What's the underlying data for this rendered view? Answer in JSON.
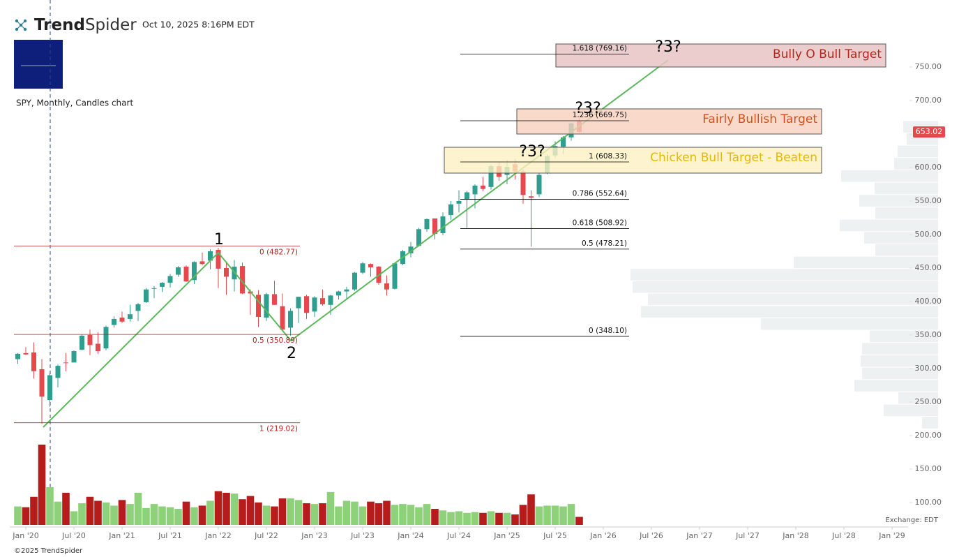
{
  "header": {
    "logo": [
      "Trend",
      "Spider"
    ],
    "timestamp": "Oct 10, 2025 8:16PM EDT",
    "symbol": "SPY, Monthly, Candles chart",
    "exchange": "Exchange: EDT",
    "copyright": "©2025 TrendSpider"
  },
  "chart_data": {
    "type": "candlestick",
    "x": [
      "2019-12",
      "2020-01",
      "2020-02",
      "2020-03",
      "2020-04",
      "2020-05",
      "2020-06",
      "2020-07",
      "2020-08",
      "2020-09",
      "2020-10",
      "2020-11",
      "2020-12",
      "2021-01",
      "2021-02",
      "2021-03",
      "2021-04",
      "2021-05",
      "2021-06",
      "2021-07",
      "2021-08",
      "2021-09",
      "2021-10",
      "2021-11",
      "2021-12",
      "2022-01",
      "2022-02",
      "2022-03",
      "2022-04",
      "2022-05",
      "2022-06",
      "2022-07",
      "2022-08",
      "2022-09",
      "2022-10",
      "2022-11",
      "2022-12",
      "2023-01",
      "2023-02",
      "2023-03",
      "2023-04",
      "2023-05",
      "2023-06",
      "2023-07",
      "2023-08",
      "2023-09",
      "2023-10",
      "2023-11",
      "2023-12",
      "2024-01",
      "2024-02",
      "2024-03",
      "2024-04",
      "2024-05",
      "2024-06",
      "2024-07",
      "2024-08",
      "2024-09",
      "2024-10",
      "2024-11",
      "2024-12",
      "2025-01",
      "2025-02",
      "2025-03",
      "2025-04",
      "2025-05",
      "2025-06",
      "2025-07",
      "2025-08",
      "2025-09",
      "2025-10"
    ],
    "open": [
      314,
      323,
      324,
      299,
      253,
      286,
      309,
      309,
      328,
      350,
      337,
      330,
      365,
      376,
      374,
      386,
      399,
      419,
      422,
      428,
      440,
      452,
      432,
      460,
      461,
      477,
      450,
      433,
      453,
      415,
      410,
      376,
      411,
      393,
      361,
      390,
      408,
      385,
      405,
      395,
      409,
      415,
      418,
      443,
      456,
      452,
      427,
      419,
      456,
      472,
      483,
      508,
      524,
      502,
      529,
      546,
      552,
      560,
      573,
      571,
      602,
      589,
      605,
      594,
      557,
      560,
      592,
      618,
      631,
      645,
      669
    ],
    "high": [
      323,
      332,
      339,
      314,
      294,
      306,
      323,
      327,
      351,
      358,
      354,
      364,
      378,
      385,
      395,
      398,
      420,
      423,
      429,
      441,
      453,
      454,
      460,
      473,
      478,
      480,
      458,
      462,
      458,
      418,
      417,
      413,
      431,
      412,
      390,
      407,
      410,
      408,
      418,
      410,
      416,
      422,
      444,
      459,
      457,
      453,
      439,
      457,
      477,
      489,
      510,
      524,
      524,
      533,
      550,
      566,
      565,
      575,
      586,
      604,
      609,
      611,
      613,
      597,
      566,
      592,
      620,
      639,
      647,
      667,
      674
    ],
    "low": [
      307,
      320,
      285,
      218,
      243,
      272,
      296,
      311,
      327,
      320,
      322,
      327,
      361,
      368,
      370,
      371,
      398,
      405,
      414,
      421,
      437,
      429,
      426,
      454,
      448,
      420,
      410,
      415,
      411,
      380,
      362,
      371,
      395,
      357,
      349,
      368,
      374,
      377,
      394,
      380,
      403,
      403,
      416,
      441,
      437,
      425,
      409,
      418,
      454,
      466,
      482,
      504,
      493,
      499,
      522,
      533,
      510,
      539,
      565,
      567,
      580,
      575,
      582,
      546,
      482,
      556,
      590,
      614,
      620,
      640,
      652
    ],
    "close": [
      322,
      321,
      296,
      258,
      290,
      304,
      308,
      326,
      349,
      335,
      326,
      362,
      374,
      370,
      381,
      396,
      418,
      420,
      428,
      438,
      451,
      430,
      459,
      456,
      475,
      449,
      437,
      452,
      412,
      412,
      377,
      411,
      395,
      358,
      386,
      407,
      383,
      406,
      396,
      409,
      415,
      418,
      443,
      457,
      451,
      428,
      418,
      457,
      475,
      482,
      508,
      523,
      501,
      527,
      545,
      550,
      563,
      573,
      568,
      602,
      586,
      601,
      594,
      559,
      555,
      589,
      617,
      632,
      645,
      666,
      653.02
    ],
    "volume": [
      1150,
      1100,
      1750,
      5000,
      2350,
      1450,
      2000,
      850,
      1350,
      1750,
      1500,
      1400,
      1200,
      1550,
      1300,
      2000,
      1050,
      1300,
      1150,
      1100,
      1000,
      1450,
      1100,
      1200,
      1500,
      2100,
      2000,
      1950,
      1600,
      1800,
      1400,
      1200,
      1150,
      1650,
      1650,
      1550,
      1350,
      1300,
      1350,
      2050,
      1150,
      1500,
      1450,
      1150,
      1450,
      1350,
      1500,
      1250,
      1300,
      1250,
      1100,
      1300,
      1000,
      900,
      800,
      850,
      750,
      800,
      750,
      850,
      750,
      750,
      650,
      1250,
      1900,
      1150,
      1200,
      1200,
      1150,
      1300,
      500
    ],
    "up_color": "#2f9e8f",
    "down_color": "#e5484d",
    "volume_up_color": "#8fd17a",
    "volume_down_color": "#b71c1c",
    "xlim": [
      "2019-11",
      "2029-03"
    ],
    "xticks": [
      {
        "value": "2020-01",
        "label": "Jan '20"
      },
      {
        "value": "2020-07",
        "label": "Jul '20"
      },
      {
        "value": "2021-01",
        "label": "Jan '21"
      },
      {
        "value": "2021-07",
        "label": "Jul '21"
      },
      {
        "value": "2022-01",
        "label": "Jan '22"
      },
      {
        "value": "2022-07",
        "label": "Jul '22"
      },
      {
        "value": "2023-01",
        "label": "Jan '23"
      },
      {
        "value": "2023-07",
        "label": "Jul '23"
      },
      {
        "value": "2024-01",
        "label": "Jan '24"
      },
      {
        "value": "2024-07",
        "label": "Jul '24"
      },
      {
        "value": "2025-01",
        "label": "Jan '25"
      },
      {
        "value": "2025-07",
        "label": "Jul '25"
      },
      {
        "value": "2026-01",
        "label": "Jan '26"
      },
      {
        "value": "2026-07",
        "label": "Jul '26"
      },
      {
        "value": "2027-01",
        "label": "Jan '27"
      },
      {
        "value": "2027-07",
        "label": "Jul '27"
      },
      {
        "value": "2028-01",
        "label": "Jan '28"
      },
      {
        "value": "2028-07",
        "label": "Jul '28"
      },
      {
        "value": "2029-01",
        "label": "Jan '29"
      }
    ],
    "ylim": [
      63.5,
      850
    ],
    "yticks": [
      {
        "value": 100,
        "label": "100.00"
      },
      {
        "value": 150,
        "label": "150.00"
      },
      {
        "value": 200,
        "label": "200.00"
      },
      {
        "value": 250,
        "label": "250.00"
      },
      {
        "value": 300,
        "label": "300.00"
      },
      {
        "value": 350,
        "label": "350.00"
      },
      {
        "value": 400,
        "label": "400.00"
      },
      {
        "value": 450,
        "label": "450.00"
      },
      {
        "value": 500,
        "label": "500.00"
      },
      {
        "value": 550,
        "label": "550.00"
      },
      {
        "value": 600,
        "label": "600.00"
      },
      {
        "value": 650,
        "label": "650.00"
      },
      {
        "value": 700,
        "label": "700.00"
      },
      {
        "value": 750,
        "label": "750.00"
      }
    ],
    "volume_profile": {
      "bins": [
        210,
        228.4,
        246.8,
        265.2,
        283.6,
        302,
        320.4,
        338.8,
        357.2,
        375.6,
        394,
        412.4,
        430.8,
        449.2,
        467.6,
        486,
        504.4,
        522.8,
        541.2,
        559.6,
        578,
        596.4,
        614.8,
        633.2,
        651.6,
        670
      ],
      "values": [
        23,
        78,
        57,
        120,
        109,
        111,
        109,
        98,
        254,
        426,
        416,
        438,
        441,
        207,
        90,
        106,
        141,
        90,
        113,
        91,
        139,
        63,
        58,
        45,
        50
      ],
      "color": "#eef1f2"
    },
    "fib_levels": [
      [
        {
          "value": 482.77,
          "label": "0 (482.77)"
        },
        {
          "value": 350.89,
          "label": "0.5 (350.89)"
        },
        {
          "value": 219.02,
          "label": "1 (219.02)"
        }
      ],
      [
        {
          "value": 769.16,
          "label": "1.618 (769.16)"
        },
        {
          "value": 669.75,
          "label": "1.236 (669.75)"
        },
        {
          "value": 608.33,
          "label": "1 (608.33)"
        },
        {
          "value": 552.64,
          "label": "0.786 (552.64)"
        },
        {
          "value": 508.92,
          "label": "0.618 (508.92)"
        },
        {
          "value": 478.21,
          "label": "0.5 (478.21)"
        },
        {
          "value": 348.1,
          "label": "0 (348.10)"
        }
      ]
    ],
    "targets": [
      "Bully O Bull Target",
      "Fairly Bullish Target",
      "Chicken Bull Target - Beaten"
    ],
    "annotations": [
      "1",
      "2",
      "?3?",
      "?3?",
      "?3?"
    ]
  }
}
